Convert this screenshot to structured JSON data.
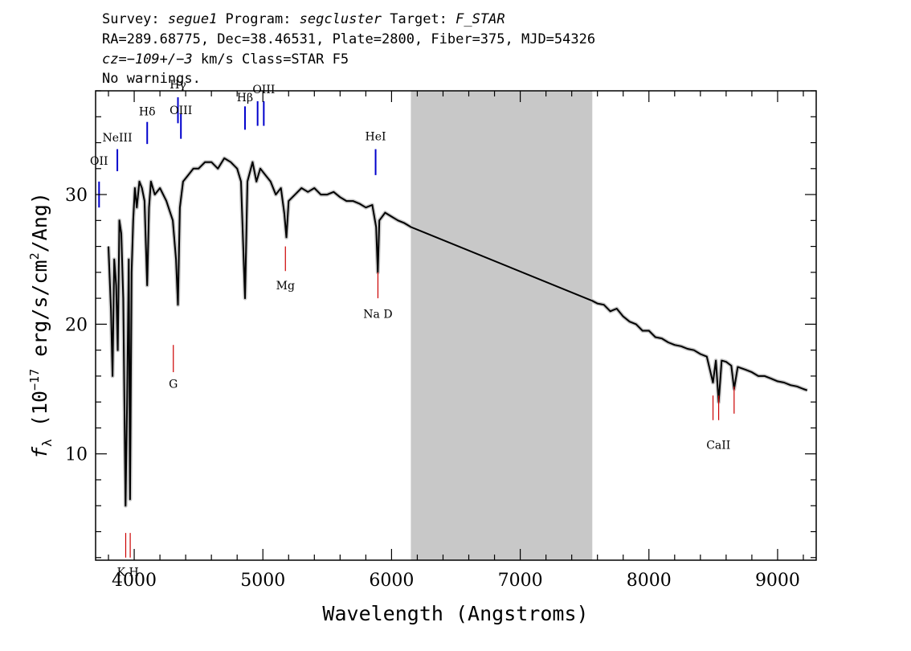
{
  "header": {
    "line1": {
      "survey_label": "Survey: ",
      "survey": "segue1",
      "program_label": " Program: ",
      "program": "segcluster",
      "target_label": " Target: ",
      "target": "F_STAR"
    },
    "line2": "RA=289.68775, Dec=38.46531, Plate=2800, Fiber=375, MJD=54326",
    "line3": {
      "cz_label": "cz=",
      "cz_value": "−109+/−3",
      "rest": " km/s Class=STAR F5"
    },
    "line4": "No warnings."
  },
  "chart_data": {
    "type": "line",
    "xlabel": "Wavelength (Angstroms)",
    "ylabel": {
      "f": "f",
      "sub": "λ",
      "open": " (10",
      "exp": "−17",
      "mid": " erg/s/cm",
      "exp2": "2",
      "close": "/Ang)"
    },
    "xlim": [
      3700,
      9300
    ],
    "ylim": [
      1.8,
      38.0
    ],
    "xticks": [
      4000,
      5000,
      6000,
      7000,
      8000,
      9000
    ],
    "yticks": [
      10,
      20,
      30
    ],
    "masked_region": [
      6150,
      7560
    ],
    "colors": {
      "spectrum": "#000000",
      "error": "#c8c8c8",
      "mask": "#c8c8c8",
      "emission": "#0000cc",
      "absorption": "#cc0000"
    },
    "spectrum_points": [
      [
        3800,
        26.0
      ],
      [
        3820,
        21.0
      ],
      [
        3832,
        16.0
      ],
      [
        3845,
        25.0
      ],
      [
        3860,
        23.0
      ],
      [
        3872,
        18.0
      ],
      [
        3885,
        28.0
      ],
      [
        3900,
        27.0
      ],
      [
        3915,
        22.0
      ],
      [
        3933,
        6.0
      ],
      [
        3945,
        14.0
      ],
      [
        3958,
        25.0
      ],
      [
        3968,
        6.5
      ],
      [
        3980,
        24.0
      ],
      [
        3992,
        28.0
      ],
      [
        4005,
        30.5
      ],
      [
        4020,
        29.0
      ],
      [
        4040,
        31.0
      ],
      [
        4060,
        30.5
      ],
      [
        4080,
        29.5
      ],
      [
        4101,
        23.0
      ],
      [
        4115,
        29.0
      ],
      [
        4130,
        31.0
      ],
      [
        4160,
        30.0
      ],
      [
        4200,
        30.5
      ],
      [
        4250,
        29.5
      ],
      [
        4300,
        28.0
      ],
      [
        4325,
        25.0
      ],
      [
        4340,
        21.5
      ],
      [
        4355,
        29.0
      ],
      [
        4380,
        31.0
      ],
      [
        4420,
        31.5
      ],
      [
        4460,
        32.0
      ],
      [
        4500,
        32.0
      ],
      [
        4550,
        32.5
      ],
      [
        4600,
        32.5
      ],
      [
        4650,
        32.0
      ],
      [
        4700,
        32.8
      ],
      [
        4750,
        32.5
      ],
      [
        4800,
        32.0
      ],
      [
        4830,
        31.0
      ],
      [
        4861,
        22.0
      ],
      [
        4880,
        31.0
      ],
      [
        4920,
        32.5
      ],
      [
        4950,
        31.0
      ],
      [
        4980,
        32.0
      ],
      [
        5020,
        31.5
      ],
      [
        5060,
        31.0
      ],
      [
        5100,
        30.0
      ],
      [
        5140,
        30.5
      ],
      [
        5167,
        28.5
      ],
      [
        5183,
        26.7
      ],
      [
        5200,
        29.5
      ],
      [
        5250,
        30.0
      ],
      [
        5300,
        30.5
      ],
      [
        5350,
        30.2
      ],
      [
        5400,
        30.5
      ],
      [
        5450,
        30.0
      ],
      [
        5500,
        30.0
      ],
      [
        5550,
        30.2
      ],
      [
        5600,
        29.8
      ],
      [
        5650,
        29.5
      ],
      [
        5700,
        29.5
      ],
      [
        5750,
        29.3
      ],
      [
        5800,
        29.0
      ],
      [
        5850,
        29.2
      ],
      [
        5880,
        27.5
      ],
      [
        5893,
        24.0
      ],
      [
        5905,
        28.0
      ],
      [
        5950,
        28.6
      ],
      [
        6000,
        28.3
      ],
      [
        6050,
        28.0
      ],
      [
        6100,
        27.8
      ],
      [
        6150,
        27.5
      ],
      [
        7560,
        21.8
      ],
      [
        7600,
        21.6
      ],
      [
        7650,
        21.5
      ],
      [
        7700,
        21.0
      ],
      [
        7750,
        21.2
      ],
      [
        7800,
        20.6
      ],
      [
        7850,
        20.2
      ],
      [
        7900,
        20.0
      ],
      [
        7950,
        19.5
      ],
      [
        8000,
        19.5
      ],
      [
        8050,
        19.0
      ],
      [
        8100,
        18.9
      ],
      [
        8150,
        18.6
      ],
      [
        8200,
        18.4
      ],
      [
        8250,
        18.3
      ],
      [
        8300,
        18.1
      ],
      [
        8350,
        18.0
      ],
      [
        8400,
        17.7
      ],
      [
        8450,
        17.5
      ],
      [
        8498,
        15.5
      ],
      [
        8520,
        17.2
      ],
      [
        8542,
        14.0
      ],
      [
        8565,
        17.2
      ],
      [
        8600,
        17.1
      ],
      [
        8640,
        16.8
      ],
      [
        8662,
        15.0
      ],
      [
        8690,
        16.7
      ],
      [
        8750,
        16.5
      ],
      [
        8800,
        16.3
      ],
      [
        8850,
        16.0
      ],
      [
        8900,
        16.0
      ],
      [
        8950,
        15.8
      ],
      [
        9000,
        15.6
      ],
      [
        9050,
        15.5
      ],
      [
        9100,
        15.3
      ],
      [
        9150,
        15.2
      ],
      [
        9200,
        15.0
      ],
      [
        9230,
        14.9
      ]
    ],
    "emission_lines": [
      {
        "label": "OII",
        "x": 3727,
        "y_top": 31.0,
        "y_bottom": 29.0,
        "label_y": 32.3
      },
      {
        "label": "NeIII",
        "x": 3869,
        "y_top": 33.5,
        "y_bottom": 31.8,
        "label_y": 34.1
      },
      {
        "label": "Hδ",
        "x": 4101,
        "y_top": 35.6,
        "y_bottom": 33.9,
        "label_y": 36.1
      },
      {
        "label": "Hγ",
        "x": 4340,
        "y_top": 37.5,
        "y_bottom": 35.5,
        "label_y": 38.2
      },
      {
        "label": "OIII",
        "x": 4363,
        "y_top": 36.2,
        "y_bottom": 34.3,
        "label_y": 36.2
      },
      {
        "label": "Hβ",
        "x": 4861,
        "y_top": 36.8,
        "y_bottom": 35.0,
        "label_y": 37.2
      },
      {
        "label": "OIII",
        "x": 4959,
        "y_top": 37.2,
        "y_bottom": 35.3,
        "label_y": null
      },
      {
        "label": "OIII",
        "x": 5007,
        "y_top": 37.2,
        "y_bottom": 35.3,
        "label_y": 37.8
      },
      {
        "label": "HeI",
        "x": 5876,
        "y_top": 33.5,
        "y_bottom": 31.5,
        "label_y": 34.2
      }
    ],
    "absorption_lines": [
      {
        "label": "K",
        "x": 3934,
        "y_top": 3.9,
        "y_bottom": 2.0
      },
      {
        "label": "H",
        "x": 3969,
        "y_top": 3.9,
        "y_bottom": 2.0
      },
      {
        "label": "G",
        "x": 4304,
        "y_top": 18.4,
        "y_bottom": 16.3,
        "label_y": 15.1
      },
      {
        "label": "Mg",
        "x": 5175,
        "y_top": 26.0,
        "y_bottom": 24.1,
        "label_y": 22.7
      },
      {
        "label": "Na",
        "x": 5894,
        "y_top": 24.0,
        "y_bottom": 22.0,
        "label_y": 20.5
      },
      {
        "label": "CaII",
        "x": 8498,
        "y_top": 14.5,
        "y_bottom": 12.6
      },
      {
        "label": "CaII",
        "x": 8542,
        "y_top": 14.5,
        "y_bottom": 12.6
      },
      {
        "label": "CaII",
        "x": 8662,
        "y_top": 15.2,
        "y_bottom": 13.1
      }
    ],
    "absorption_group_labels": [
      {
        "text": "K H",
        "x": 3951,
        "y": 0.6
      },
      {
        "text": "G",
        "x": 4304,
        "y": 15.1
      },
      {
        "text": "Mg",
        "x": 5175,
        "y": 22.7
      },
      {
        "text": "Na  D",
        "x": 5894,
        "y": 20.5
      },
      {
        "text": "CaII",
        "x": 8540,
        "y": 10.4
      }
    ]
  }
}
